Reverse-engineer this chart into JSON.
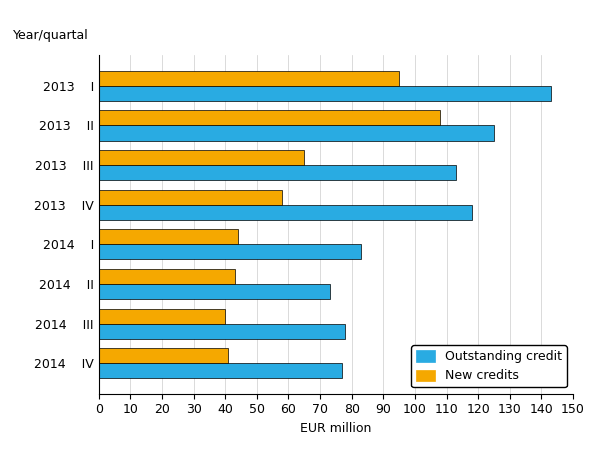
{
  "year_labels": [
    "2013",
    "2013",
    "2013",
    "2013",
    "2014",
    "2014",
    "2014",
    "2014"
  ],
  "quarter_labels": [
    "I",
    "II",
    "III",
    "IV",
    "I",
    "II",
    "III",
    "IV"
  ],
  "outstanding_credit": [
    143,
    125,
    113,
    118,
    83,
    73,
    78,
    77
  ],
  "new_credits": [
    95,
    108,
    65,
    58,
    44,
    43,
    40,
    41
  ],
  "outstanding_color": "#29ABE2",
  "new_credits_color": "#F5A800",
  "xlim": [
    0,
    150
  ],
  "xticks": [
    0,
    10,
    20,
    30,
    40,
    50,
    60,
    70,
    80,
    90,
    100,
    110,
    120,
    130,
    140,
    150
  ],
  "xlabel": "EUR million",
  "ylabel": "Year/quartal",
  "legend_labels": [
    "Outstanding credit",
    "New credits"
  ],
  "background_color": "#ffffff",
  "bar_height": 0.38,
  "tick_fontsize": 9,
  "label_fontsize": 9
}
